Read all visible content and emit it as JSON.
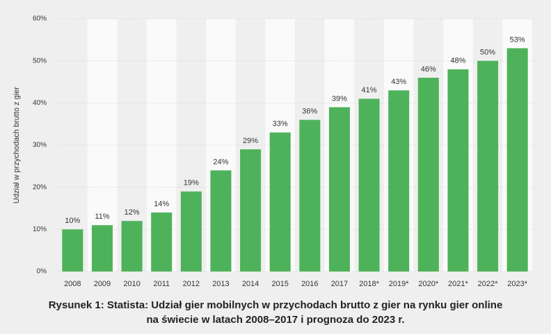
{
  "chart_data": {
    "type": "bar",
    "y_label": "Udział w przychodach brutto z gier",
    "caption_lines": [
      "Rysunek 1: Statista: Udział gier mobilnych w przychodach brutto z gier na rynku gier online",
      "na świecie w latach 2008–2017 i prognoza do 2023 r."
    ],
    "categories": [
      "2008",
      "2009",
      "2010",
      "2011",
      "2012",
      "2013",
      "2014",
      "2015",
      "2016",
      "2017",
      "2018*",
      "2019*",
      "2020*",
      "2021*",
      "2022*",
      "2023*"
    ],
    "values": [
      10,
      11,
      12,
      14,
      19,
      24,
      29,
      33,
      36,
      39,
      41,
      43,
      46,
      48,
      50,
      53
    ],
    "value_labels": [
      "10%",
      "11%",
      "12%",
      "14%",
      "19%",
      "24%",
      "29%",
      "33%",
      "36%",
      "39%",
      "41%",
      "43%",
      "46%",
      "48%",
      "50%",
      "53%"
    ],
    "color": "#4eb25a",
    "ylim": [
      0,
      60
    ],
    "yticks": [
      {
        "value": 0,
        "label": "0%"
      },
      {
        "value": 10,
        "label": "10%"
      },
      {
        "value": 20,
        "label": "20%"
      },
      {
        "value": 30,
        "label": "30%"
      },
      {
        "value": 40,
        "label": "40%"
      },
      {
        "value": 50,
        "label": "50%"
      },
      {
        "value": 60,
        "label": "60%"
      }
    ],
    "grid": true
  }
}
